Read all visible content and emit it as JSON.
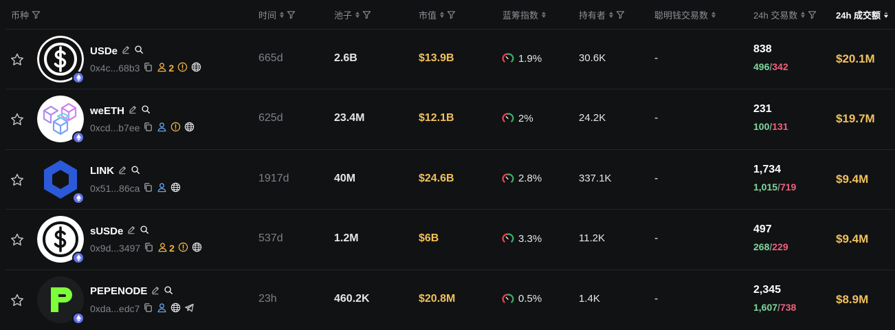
{
  "header": {
    "token": "币种",
    "age": "时间",
    "pool": "池子",
    "mcap": "市值",
    "bluechip": "蓝筹指数",
    "holders": "持有者",
    "smart_money": "聪明钱交易数",
    "tx_24h": "24h 交易数",
    "vol_24h": "24h 成交额"
  },
  "colors": {
    "buy": "#7fd99a",
    "sell": "#f2617a",
    "gold": "#f0c15c",
    "background": "#111214"
  },
  "rows": [
    {
      "name": "USDe",
      "address": "0x4c...68b3",
      "holder_badge": "2",
      "age": "665d",
      "pool": "2.6B",
      "mcap": "$13.9B",
      "bluechip": "1.9%",
      "holders": "30.6K",
      "smart": "-",
      "tx": "838",
      "buys": "496",
      "sells": "342",
      "volume": "$20.1M",
      "icons": [
        "edit-icon",
        "search-icon",
        "copy-icon",
        "user-icon",
        "warning-icon",
        "globe-icon"
      ]
    },
    {
      "name": "weETH",
      "address": "0xcd...b7ee",
      "holder_badge": "",
      "age": "625d",
      "pool": "23.4M",
      "mcap": "$12.1B",
      "bluechip": "2%",
      "holders": "24.2K",
      "smart": "-",
      "tx": "231",
      "buys": "100",
      "sells": "131",
      "volume": "$19.7M",
      "icons": [
        "edit-icon",
        "search-icon",
        "copy-icon",
        "user-icon",
        "warning-icon",
        "globe-icon"
      ]
    },
    {
      "name": "LINK",
      "address": "0x51...86ca",
      "holder_badge": "",
      "age": "1917d",
      "pool": "40M",
      "mcap": "$24.6B",
      "bluechip": "2.8%",
      "holders": "337.1K",
      "smart": "-",
      "tx": "1,734",
      "buys": "1,015",
      "sells": "719",
      "volume": "$9.4M",
      "icons": [
        "edit-icon",
        "search-icon",
        "copy-icon",
        "user-icon",
        "globe-icon"
      ]
    },
    {
      "name": "sUSDe",
      "address": "0x9d...3497",
      "holder_badge": "2",
      "age": "537d",
      "pool": "1.2M",
      "mcap": "$6B",
      "bluechip": "3.3%",
      "holders": "11.2K",
      "smart": "-",
      "tx": "497",
      "buys": "268",
      "sells": "229",
      "volume": "$9.4M",
      "icons": [
        "edit-icon",
        "search-icon",
        "copy-icon",
        "user-icon",
        "warning-icon",
        "globe-icon"
      ]
    },
    {
      "name": "PEPENODE",
      "address": "0xda...edc7",
      "holder_badge": "",
      "age": "23h",
      "pool": "460.2K",
      "mcap": "$20.8M",
      "bluechip": "0.5%",
      "holders": "1.4K",
      "smart": "-",
      "tx": "2,345",
      "buys": "1,607",
      "sells": "738",
      "volume": "$8.9M",
      "icons": [
        "edit-icon",
        "search-icon",
        "copy-icon",
        "user-icon",
        "globe-icon",
        "telegram-icon"
      ]
    }
  ]
}
